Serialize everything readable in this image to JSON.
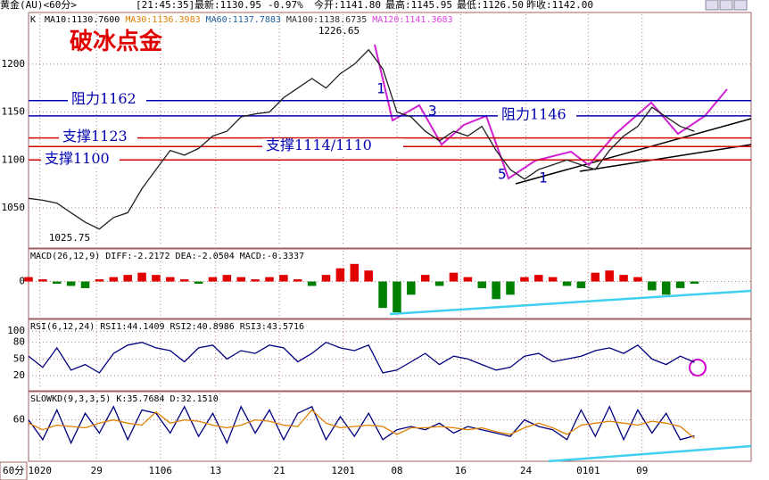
{
  "header": {
    "symbol": "黄金(AU)<60分>",
    "time": "[21:45:35]",
    "last": "最新:1130.95",
    "change": "-0.97%",
    "open": "今开:1141.80",
    "high": "最高:1145.95",
    "low": "最低:1126.50",
    "prev": "昨收:1142.00"
  },
  "period_label": "60分",
  "chart_data": [
    {
      "type": "line",
      "title": "K",
      "overlay_title": "破冰点金",
      "ma_legend": [
        {
          "text": "MA10:1130.7600",
          "color": "#000000"
        },
        {
          "text": "MA30:1136.3983",
          "color": "#e08000"
        },
        {
          "text": "MA60:1137.7883",
          "color": "#2060a0"
        },
        {
          "text": "MA100:1138.6735",
          "color": "#303030"
        },
        {
          "text": "MA120:1141.3683",
          "color": "#e040e0"
        }
      ],
      "xlim": [
        0,
        51
      ],
      "xticks": [
        {
          "value": 0.8,
          "label": "1020"
        },
        {
          "value": 4.8,
          "label": "29"
        },
        {
          "value": 9.3,
          "label": "1106"
        },
        {
          "value": 13.2,
          "label": "13"
        },
        {
          "value": 17.7,
          "label": "21"
        },
        {
          "value": 22.2,
          "label": "1201"
        },
        {
          "value": 26.0,
          "label": "08"
        },
        {
          "value": 30.5,
          "label": "16"
        },
        {
          "value": 35.1,
          "label": "24"
        },
        {
          "value": 39.5,
          "label": "0101"
        },
        {
          "value": 43.3,
          "label": "09"
        }
      ],
      "ylim": [
        1010,
        1252
      ],
      "yticks": [
        1050,
        1100,
        1150,
        1200
      ],
      "series": [
        {
          "color": "#202020",
          "values": [
            1060,
            1058,
            1055,
            1045,
            1035,
            1028,
            1040,
            1045,
            1070,
            1090,
            1110,
            1105,
            1112,
            1125,
            1130,
            1145,
            1148,
            1150,
            1165,
            1175,
            1185,
            1175,
            1190,
            1200,
            1215,
            1195,
            1150,
            1145,
            1130,
            1120,
            1130,
            1125,
            1135,
            1110,
            1090,
            1080,
            1090,
            1095,
            1100,
            1095,
            1090,
            1110,
            1125,
            1135,
            1155,
            1145,
            1135,
            1130
          ]
        }
      ],
      "levels": [
        {
          "label": "阻力1162",
          "value": 1162,
          "color": "#0000b0"
        },
        {
          "label": "阻力1146",
          "value": 1146,
          "color": "#0000b0"
        },
        {
          "label": "支撑1123",
          "value": 1123,
          "color": "#d00000"
        },
        {
          "label": "支撑1114/1110",
          "value": 1114,
          "color": "#d00000"
        },
        {
          "label": "支撑1100",
          "value": 1100,
          "color": "#d00000"
        }
      ],
      "annotations": [
        {
          "text": "1226.65",
          "value": 1226.65
        },
        {
          "text": "1025.75",
          "value": 1025.75
        }
      ],
      "wave_labels": [
        "1",
        "3",
        "5",
        "1"
      ]
    },
    {
      "type": "bar",
      "title": "MACD(26,12,9) DIFF:-2.2172 DEA:-2.0504 MACD:-0.3337",
      "ylim": [
        -16,
        14
      ],
      "yticks": [
        0
      ],
      "up_color": "#e00000",
      "down_color": "#008000",
      "values": [
        2,
        1,
        -1,
        -2,
        -3,
        1,
        2,
        3,
        4,
        3,
        2,
        1,
        -1,
        2,
        3,
        2,
        1,
        2,
        3,
        1,
        -2,
        3,
        6,
        8,
        5,
        -12,
        -14,
        -6,
        3,
        -2,
        4,
        2,
        -3,
        -8,
        -6,
        2,
        3,
        2,
        -2,
        -3,
        4,
        5,
        3,
        2,
        -4,
        -6,
        -3,
        -1
      ]
    },
    {
      "type": "line",
      "title": "RSI(6,12,24) RSI1:44.1409 RSI2:40.8986 RSI3:43.5716",
      "ylim": [
        -4,
        118
      ],
      "yticks": [
        20,
        50,
        80,
        100
      ],
      "series": [
        {
          "color": "#000080",
          "values": [
            55,
            35,
            70,
            30,
            40,
            25,
            60,
            75,
            80,
            70,
            65,
            45,
            70,
            75,
            50,
            65,
            60,
            75,
            70,
            45,
            60,
            80,
            70,
            65,
            75,
            25,
            30,
            45,
            60,
            40,
            55,
            50,
            40,
            30,
            35,
            55,
            60,
            45,
            50,
            55,
            65,
            70,
            60,
            75,
            50,
            40,
            55,
            44
          ]
        }
      ]
    },
    {
      "type": "line",
      "title": "SLOWKD(9,3,3,5) K:35.7684 D:32.1510",
      "ylim": [
        0,
        100
      ],
      "yticks": [
        60
      ],
      "series": [
        {
          "color": "#000080",
          "values": [
            60,
            30,
            75,
            25,
            70,
            40,
            80,
            30,
            75,
            70,
            40,
            80,
            35,
            70,
            25,
            80,
            40,
            75,
            30,
            70,
            80,
            30,
            65,
            35,
            70,
            30,
            45,
            50,
            45,
            55,
            40,
            50,
            45,
            40,
            35,
            60,
            50,
            45,
            30,
            75,
            35,
            80,
            30,
            75,
            40,
            70,
            30,
            36
          ]
        },
        {
          "color": "#e08000",
          "values": [
            55,
            45,
            52,
            50,
            48,
            55,
            60,
            55,
            52,
            72,
            55,
            60,
            58,
            52,
            48,
            52,
            60,
            58,
            52,
            50,
            75,
            55,
            48,
            50,
            52,
            50,
            38,
            48,
            48,
            50,
            48,
            45,
            48,
            42,
            38,
            48,
            55,
            48,
            38,
            52,
            55,
            58,
            55,
            52,
            58,
            55,
            50,
            32
          ]
        }
      ]
    }
  ]
}
